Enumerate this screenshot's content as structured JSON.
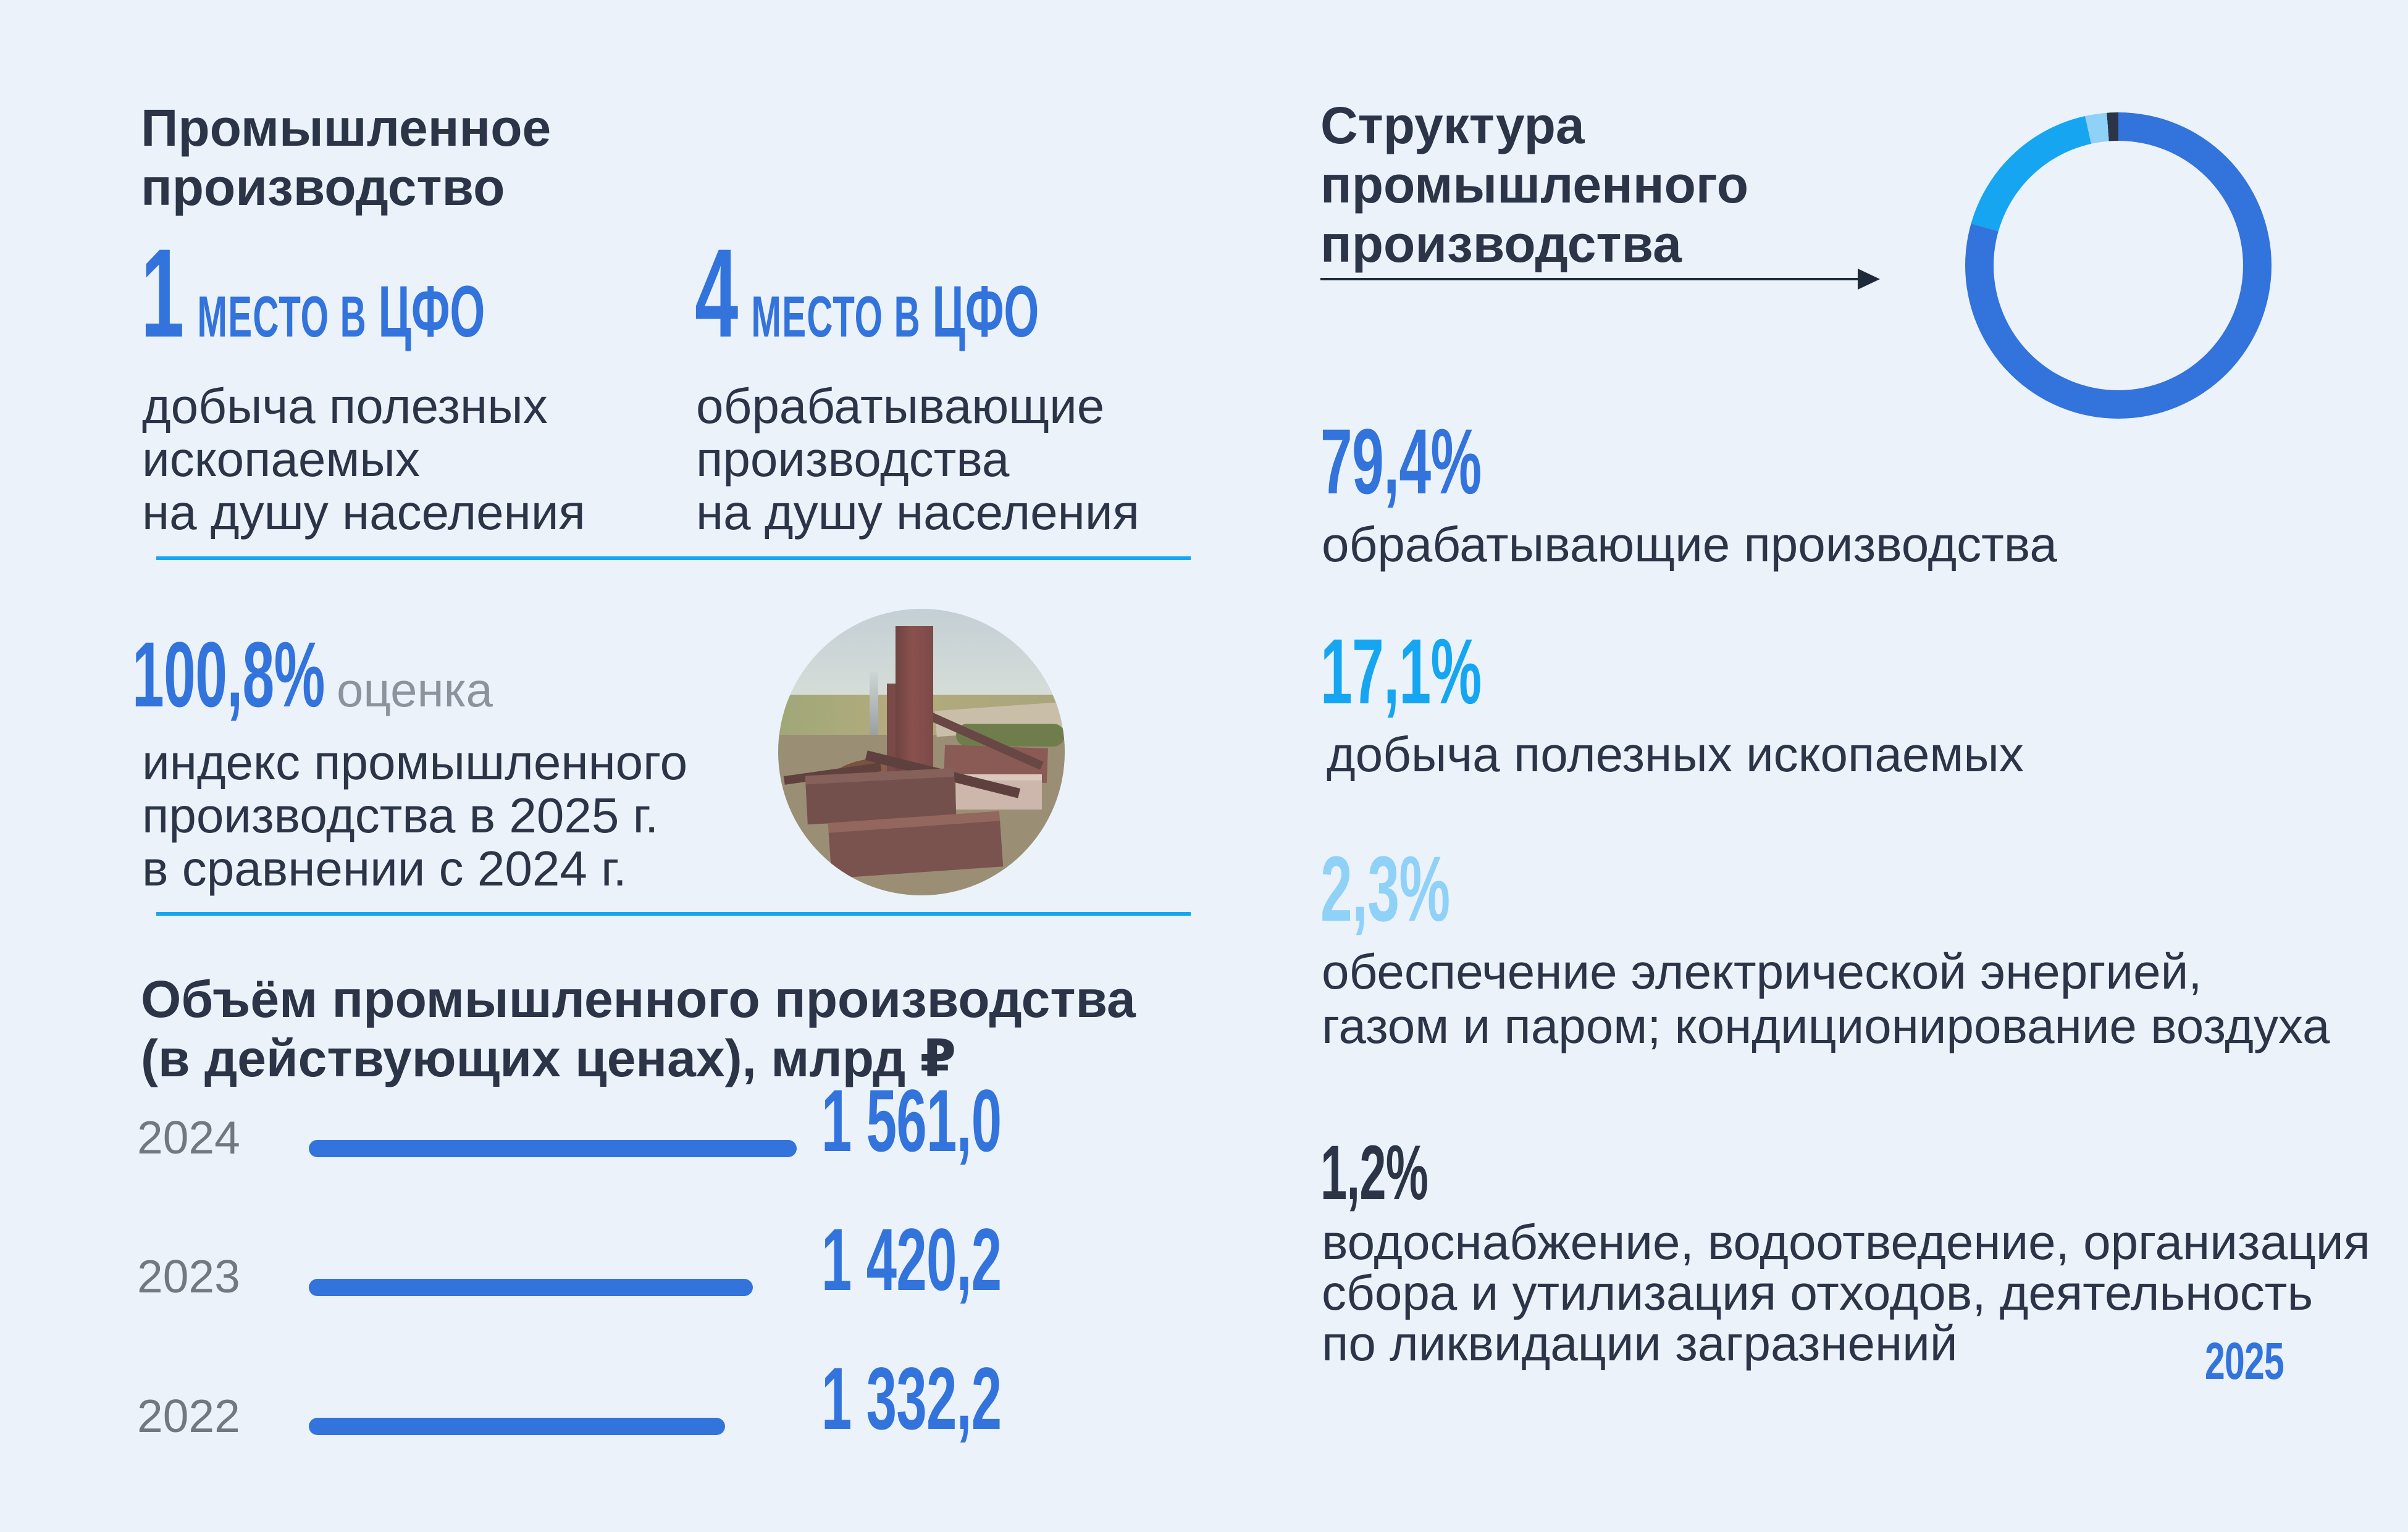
{
  "colors": {
    "background": "#ebf2fa",
    "dark": "#2b3547",
    "blue": "#3273dc",
    "cyan": "#16a6f1",
    "light_blue": "#8fd1f7",
    "gray_note": "#8d939c",
    "gray_year": "#71787f"
  },
  "left": {
    "title_lines": [
      "Промышленное",
      "производство"
    ],
    "ranks": [
      {
        "rank": "1",
        "place_label": "МЕСТО В",
        "district_label": "ЦФО",
        "desc_lines": [
          "добыча полезных",
          "ископаемых",
          "на душу населения"
        ]
      },
      {
        "rank": "4",
        "place_label": "МЕСТО В",
        "district_label": "ЦФО",
        "desc_lines": [
          "обрабатывающие",
          "производства",
          "на душу населения"
        ]
      }
    ],
    "index_block": {
      "value": "100,8%",
      "note": "оценка",
      "desc_lines": [
        "индекс промышленного",
        "производства в 2025 г.",
        "в сравнении с 2024 г."
      ]
    }
  },
  "volume": {
    "title_lines": [
      "Объём промышленного производства",
      "(в действующих ценах), млрд ₽"
    ]
  },
  "structure": {
    "title_lines": [
      "Структура",
      "промышленного",
      "производства"
    ],
    "segments": [
      {
        "value_label": "79,4%",
        "desc_lines": [
          "обрабатывающие производства"
        ]
      },
      {
        "value_label": "17,1%",
        "desc_lines": [
          "добыча полезных ископаемых"
        ]
      },
      {
        "value_label": "2,3%",
        "desc_lines": [
          "обеспечение электрической энергией,",
          "газом и паром; кондиционирование воздуха"
        ]
      },
      {
        "value_label": "1,2%",
        "desc_lines": [
          "водоснабжение, водоотведение, организация",
          "сбора и утилизация отходов, деятельность",
          "по ликвидации загразнений"
        ]
      }
    ],
    "year_badge": "2025"
  },
  "chart_data": [
    {
      "type": "bar",
      "orientation": "horizontal",
      "title": "Объём промышленного производства (в действующих ценах), млрд ₽",
      "categories": [
        "2024",
        "2023",
        "2022"
      ],
      "values": [
        1561.0,
        1420.2,
        1332.2
      ],
      "value_labels": [
        "1 561,0",
        "1 420,2",
        "1 332,2"
      ],
      "bar_color": "#3273dc",
      "xlim": [
        0,
        1561
      ],
      "grid": false,
      "value_label_position": "right"
    },
    {
      "type": "pie",
      "subtype": "donut",
      "title": "Структура промышленного производства",
      "labels": [
        "обрабатывающие производства",
        "добыча полезных ископаемых",
        "обеспечение электрической энергией, газом и паром; кондиционирование воздуха",
        "водоснабжение, водоотведение, организация сбора и утилизация отходов, деятельность по ликвидации загразнений"
      ],
      "values": [
        79.4,
        17.1,
        2.3,
        1.2
      ],
      "value_labels": [
        "79,4%",
        "17,1%",
        "2,3%",
        "1,2%"
      ],
      "colors": [
        "#3273dc",
        "#16a6f1",
        "#8fd1f7",
        "#2b3547"
      ],
      "start_angle_deg": 0,
      "direction": "clockwise",
      "legend_position": "left-stacked"
    }
  ]
}
